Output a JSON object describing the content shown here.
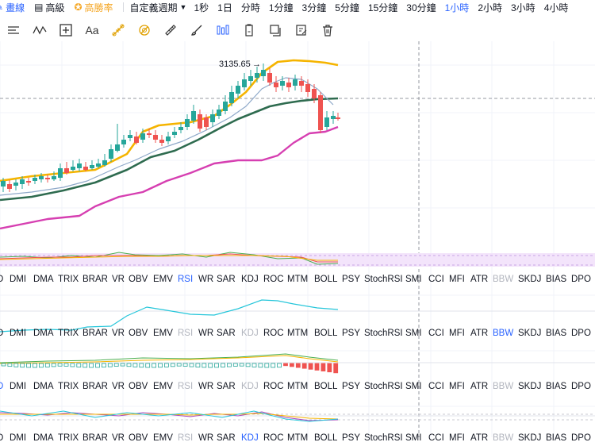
{
  "topbar": {
    "items": [
      {
        "label": "畫線",
        "icon": "pencil-icon",
        "color": "#2962ff"
      },
      {
        "label": "高級",
        "icon": "calendar-icon",
        "color": "#131722"
      },
      {
        "label": "高勝率",
        "icon": "star-icon",
        "color": "#f5a623"
      }
    ],
    "custom_period": "自定義週期",
    "timeframes": [
      "1秒",
      "1日",
      "分時",
      "1分鐘",
      "3分鐘",
      "5分鐘",
      "15分鐘",
      "30分鐘",
      "1小時",
      "2小時",
      "3小時",
      "4小時"
    ],
    "active_timeframe": "1小時"
  },
  "toolbar": {
    "tools": [
      "horizontal-lines-icon",
      "wave-pattern-icon",
      "crosshair-box-icon",
      "text-tool-icon",
      "fibonacci-tool-icon",
      "magnet-icon",
      "ruler-icon",
      "brush-icon",
      "bar-chart-icon",
      "clipboard-icon",
      "layers-icon",
      "edit-note-icon",
      "trash-icon"
    ],
    "text_tool_label": "Aa"
  },
  "price_annotation": "3135.65",
  "indicators": [
    "D",
    "DMI",
    "DMA",
    "TRIX",
    "BRAR",
    "VR",
    "OBV",
    "EMV",
    "RSI",
    "WR",
    "SAR",
    "KDJ",
    "ROC",
    "MTM",
    "BOLL",
    "PSY",
    "StochRSI",
    "SMI",
    "CCI",
    "MFI",
    "ATR",
    "BBW",
    "SKDJ",
    "BIAS",
    "DPO"
  ],
  "indicator_rows": [
    {
      "highlight": "RSI",
      "dim": [
        "BBW"
      ]
    },
    {
      "highlight": "BBW",
      "dim": [
        "RSI",
        "KDJ"
      ]
    },
    {
      "highlight": "D",
      "dim": [
        "RSI",
        "KDJ",
        "BBW"
      ]
    },
    {
      "highlight": "KDJ",
      "dim": [
        "RSI",
        "BBW"
      ]
    }
  ],
  "colors": {
    "up": "#26a69a",
    "down": "#ef5350",
    "boll_upper": "#f5b400",
    "boll_mid": "#2e6b4f",
    "boll_lower": "#d63fb1",
    "ma": "#8fa9c9",
    "accent": "#2962ff"
  }
}
